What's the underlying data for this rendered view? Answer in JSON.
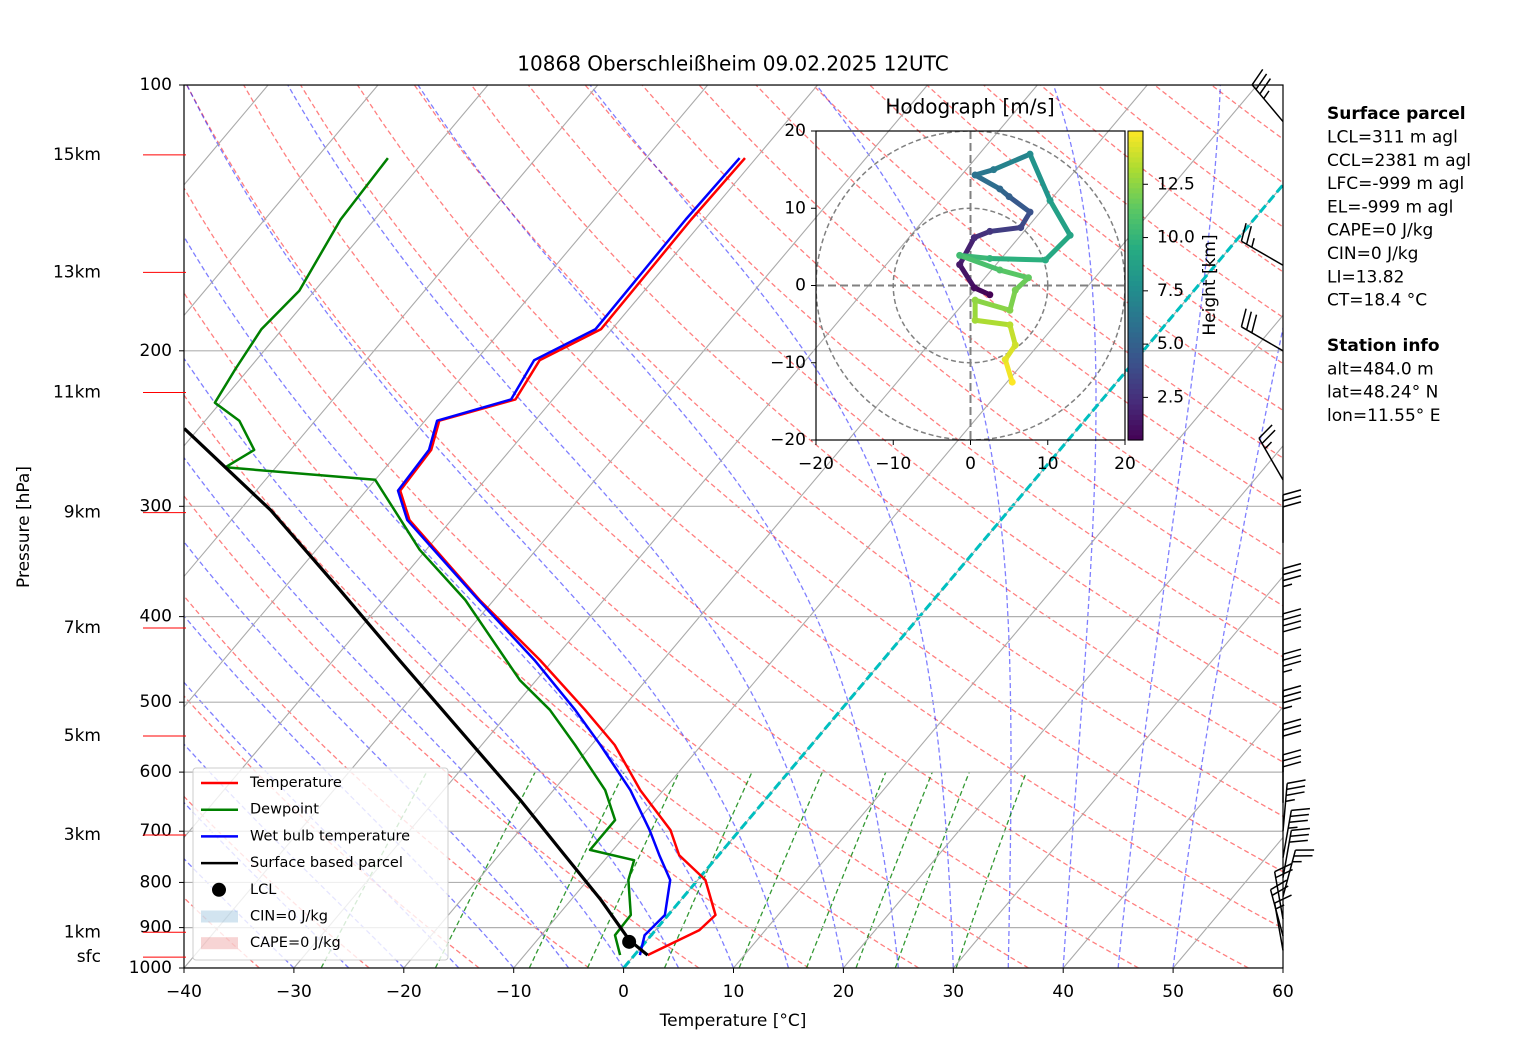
{
  "chart_data": [
    {
      "type": "skewt",
      "title": "10868 Oberschleißheim 09.02.2025 12UTC",
      "x_label": "Temperature [°C]",
      "y_label": "Pressure [hPa]",
      "xlim": [
        -40,
        60
      ],
      "ylim": [
        1000,
        100
      ],
      "log_y": true,
      "grid": true,
      "xticks": [
        {
          "value": -40,
          "label": "−40"
        },
        {
          "value": -30,
          "label": "−30"
        },
        {
          "value": -20,
          "label": "−20"
        },
        {
          "value": -10,
          "label": "−10"
        },
        0,
        10,
        20,
        30,
        40,
        50,
        60
      ],
      "yticks": [
        1000,
        900,
        800,
        700,
        600,
        500,
        400,
        300,
        200,
        100
      ],
      "series": [
        {
          "name": "Temperature",
          "color": "#ff0000",
          "x": [
            1.2,
            4.0,
            4.3,
            0.7,
            -3.6,
            -6.3,
            -12.1,
            -17.9,
            -23.3,
            -31.2,
            -41.3,
            -53.8,
            -56.9,
            -57.2,
            -58.7,
            -53.4,
            -54.2,
            -51.0,
            -51.1,
            -51.2,
            -51.0
          ],
          "values": [
            967,
            906,
            871,
            795,
            745,
            698,
            629,
            559,
            510,
            448,
            383,
            311,
            288,
            259,
            240,
            227,
            205,
            189,
            162,
            142,
            121
          ]
        },
        {
          "name": "Dewpoint",
          "color": "#008000",
          "x": [
            -1.3,
            -3.3,
            -3.4,
            -6.3,
            -7.3,
            -12.1,
            -12.1,
            -15.3,
            -21.5,
            -26.5,
            -31.5,
            -42.6,
            -50.6,
            -60.0,
            -74.6,
            -73.3,
            -76.9,
            -80.5,
            -81.2,
            -81.9,
            -81.4,
            -83.1,
            -83.5
          ],
          "values": [
            967,
            918,
            871,
            795,
            755,
            735,
            680,
            629,
            559,
            510,
            472,
            383,
            336,
            280,
            271,
            259,
            240,
            229,
            210,
            189,
            171,
            142,
            121
          ]
        },
        {
          "name": "Wet bulb temperature",
          "color": "#0000ff",
          "x": [
            0.5,
            -0.6,
            -0.3,
            -2.5,
            -5.4,
            -8.2,
            -13.0,
            -19.2,
            -24.2,
            -31.7,
            -41.4,
            -54.0,
            -57.1,
            -57.4,
            -58.9,
            -53.8,
            -54.7,
            -51.5,
            -51.6,
            -51.7,
            -51.5
          ],
          "values": [
            967,
            918,
            871,
            795,
            745,
            698,
            629,
            559,
            510,
            448,
            383,
            311,
            288,
            259,
            240,
            227,
            205,
            189,
            162,
            142,
            121
          ]
        },
        {
          "name": "Surface based parcel",
          "color": "#000000",
          "x": [
            1.2,
            -1.6,
            -7.3,
            -14.8,
            -22.3,
            -33.1,
            -44.0,
            -54.8,
            -67.2,
            -81.3
          ],
          "values": [
            967,
            930,
            837,
            735,
            645,
            538,
            448,
            373,
            303,
            245
          ]
        }
      ],
      "lcl": {
        "name": "LCL",
        "x": -1.5,
        "value": 934
      },
      "legend_extra": [
        "CIN=0 J/kg",
        "CAPE=0 J/kg"
      ],
      "legend_loc": "lower left",
      "height_labels": [
        {
          "label": "15km",
          "pressure": 120
        },
        {
          "label": "13km",
          "pressure": 163
        },
        {
          "label": "11km",
          "pressure": 223
        },
        {
          "label": "9km",
          "pressure": 305
        },
        {
          "label": "7km",
          "pressure": 412
        },
        {
          "label": "5km",
          "pressure": 546
        },
        {
          "label": "3km",
          "pressure": 707
        },
        {
          "label": "1km",
          "pressure": 911
        },
        {
          "label": "sfc",
          "pressure": 972
        }
      ],
      "wind": {
        "pressure": [
          955,
          920,
          880,
          830,
          790,
          750,
          700,
          650,
          600,
          550,
          500,
          450,
          400,
          330,
          280,
          200,
          160,
          110
        ],
        "direction": [
          350,
          345,
          350,
          15,
          10,
          10,
          5,
          360,
          360,
          360,
          360,
          360,
          360,
          360,
          330,
          300,
          300,
          320
        ],
        "speed": [
          15,
          20,
          20,
          25,
          30,
          35,
          35,
          30,
          30,
          35,
          35,
          40,
          35,
          30,
          25,
          30,
          25,
          35
        ]
      }
    },
    {
      "type": "hodograph",
      "title": "Hodograph [m/s]",
      "xlim": [
        -20,
        20
      ],
      "ylim": [
        -20,
        20
      ],
      "xticks": [
        {
          "value": -20,
          "label": "−20"
        },
        {
          "value": -10,
          "label": "−10"
        },
        0,
        10,
        20
      ],
      "yticks": [
        {
          "value": -20,
          "label": "−20"
        },
        {
          "value": -10,
          "label": "−10"
        },
        0,
        10,
        20
      ],
      "rings": [
        10,
        20
      ],
      "x": [
        2.5,
        0.5,
        -1.4,
        0.5,
        2.5,
        6.5,
        7.7,
        5,
        3.8,
        0.6,
        3,
        7.7,
        10.3,
        12.9,
        9.7,
        2.5,
        -1.4,
        3.8,
        7.5,
        5.8,
        5.1,
        0.6,
        0.6,
        5.1,
        5.8,
        4.5,
        5.4
      ],
      "values": [
        -1.2,
        -0.3,
        2.7,
        6.2,
        7,
        7.5,
        9.5,
        11.5,
        12.5,
        14.3,
        15,
        17,
        11,
        6.5,
        3.3,
        3.5,
        3.9,
        2,
        1,
        -0.6,
        -3.2,
        -1.9,
        -4.5,
        -5.1,
        -7.7,
        -9.6,
        -12.5
      ],
      "height": [
        0.5,
        1.0,
        1.5,
        2.3,
        2.8,
        3.5,
        4.2,
        5.0,
        5.5,
        6.0,
        6.5,
        7.5,
        8.5,
        9.0,
        9.5,
        10.0,
        10.5,
        11.0,
        11.5,
        12.0,
        12.3,
        12.6,
        13.0,
        13.5,
        14.0,
        14.5,
        15.0
      ],
      "colorbar": {
        "label": "Height [km]",
        "colormap": "viridis",
        "clim": [
          0.5,
          15
        ],
        "ticks": [
          2.5,
          {
            "value": 5,
            "label": "5.0"
          },
          7.5,
          {
            "value": 10,
            "label": "10.0"
          },
          12.5
        ]
      }
    }
  ],
  "info_panel": {
    "surface_parcel": {
      "title": "Surface parcel",
      "lines": [
        "LCL=311 m agl",
        "CCL=2381 m agl",
        "LFC=-999 m agl",
        "EL=-999 m agl",
        "CAPE=0 J/kg",
        "CIN=0 J/kg",
        "LI=13.82",
        "CT=18.4 °C"
      ]
    },
    "station_info": {
      "title": "Station info",
      "lines": [
        "alt=484.0 m",
        "lat=48.24° N",
        "lon=11.55° E"
      ]
    }
  }
}
